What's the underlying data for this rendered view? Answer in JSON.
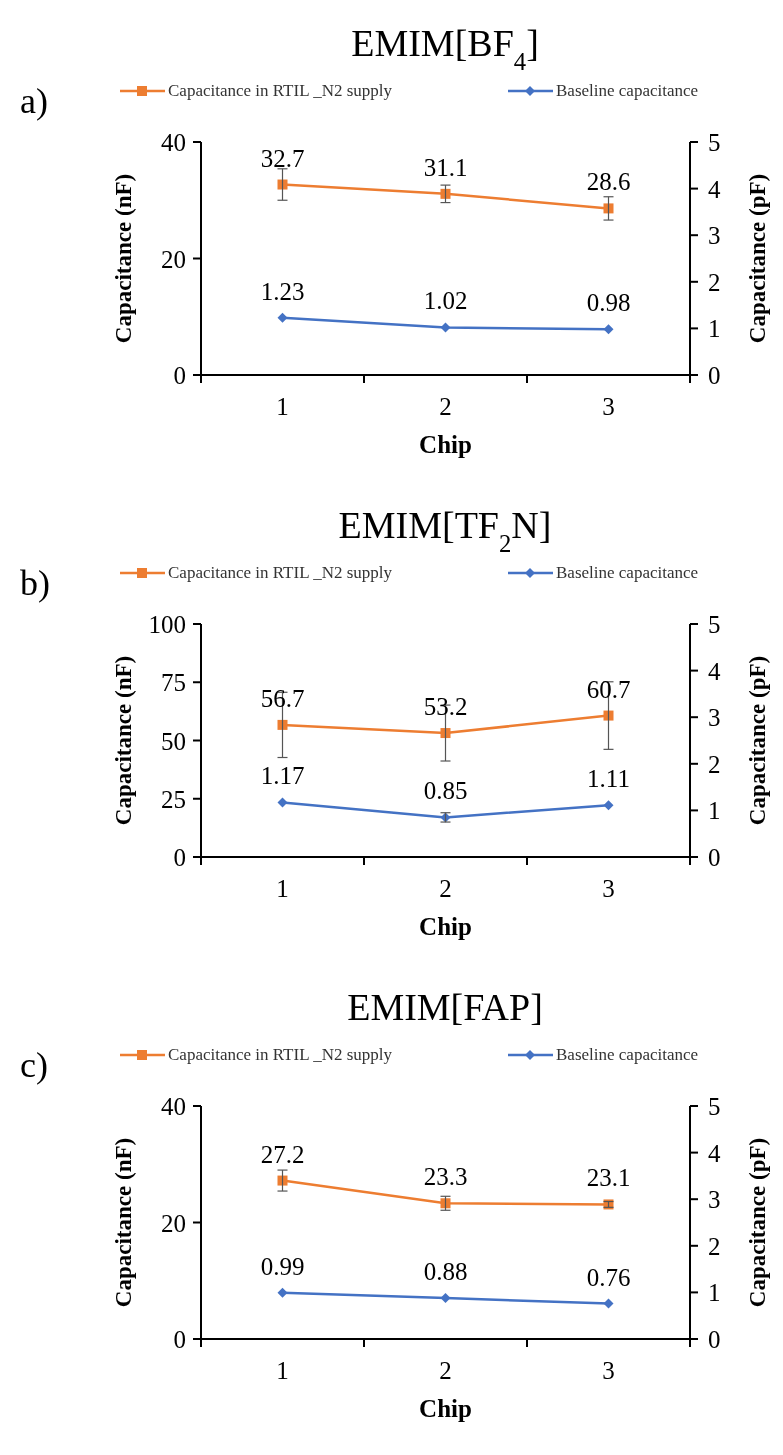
{
  "chart_data": [
    {
      "type": "line",
      "title": "EMIM[BF$_{4}$]",
      "annotations": [
        "a)"
      ],
      "xlabel": "Chip",
      "ylabel": "Capacitance (nF)",
      "y2label": "Capacitance (pF)",
      "categories": [
        "1",
        "2",
        "3"
      ],
      "ylim": [
        0,
        40
      ],
      "yticks": [
        0,
        20,
        40
      ],
      "y2lim": [
        0,
        5
      ],
      "y2ticks": [
        0,
        1,
        2,
        3,
        4,
        5
      ],
      "legend": "top",
      "data_labels": true,
      "grid": false,
      "series": [
        {
          "name": "Capacitance in RTIL _N2 supply",
          "color": "#ed7d31",
          "marker": "square",
          "values": [
            32.7,
            31.1,
            28.6
          ],
          "errors": [
            2.7,
            1.5,
            2
          ]
        },
        {
          "name": "Baseline capacitance",
          "color": "#4472c4",
          "marker": "diamond",
          "axis": "y2",
          "values": [
            1.23,
            1.02,
            0.98
          ]
        }
      ]
    },
    {
      "type": "line",
      "title": "EMIM[TF$_{2}$N]",
      "annotations": [
        "b)"
      ],
      "xlabel": "Chip",
      "ylabel": "Capacitance (nF)",
      "y2label": "Capacitance (pF)",
      "categories": [
        "1",
        "2",
        "3"
      ],
      "ylim": [
        0,
        100
      ],
      "yticks": [
        0,
        25,
        50,
        75,
        100
      ],
      "y2lim": [
        0,
        5
      ],
      "y2ticks": [
        0,
        1,
        2,
        3,
        4,
        5
      ],
      "legend": "top",
      "data_labels": true,
      "grid": false,
      "series": [
        {
          "name": "Capacitance in RTIL _N2 supply",
          "color": "#ed7d31",
          "marker": "square",
          "values": [
            56.7,
            53.2,
            60.7
          ],
          "errors": [
            14,
            12,
            14.5
          ]
        },
        {
          "name": "Baseline capacitance",
          "color": "#4472c4",
          "marker": "diamond",
          "axis": "y2",
          "values": [
            1.17,
            0.85,
            1.11
          ],
          "errors": [
            null,
            0.1,
            null
          ]
        }
      ]
    },
    {
      "type": "line",
      "title": "EMIM[FAP]",
      "annotations": [
        "c)"
      ],
      "xlabel": "Chip",
      "ylabel": "Capacitance (nF)",
      "y2label": "Capacitance (pF)",
      "categories": [
        "1",
        "2",
        "3"
      ],
      "ylim": [
        0,
        40
      ],
      "yticks": [
        0,
        20,
        40
      ],
      "y2lim": [
        0,
        5
      ],
      "y2ticks": [
        0,
        1,
        2,
        3,
        4,
        5
      ],
      "legend": "top",
      "data_labels": true,
      "grid": false,
      "series": [
        {
          "name": "Capacitance in RTIL _N2 supply",
          "color": "#ed7d31",
          "marker": "square",
          "values": [
            27.2,
            23.3,
            23.1
          ],
          "errors": [
            1.8,
            1.2,
            0.5
          ]
        },
        {
          "name": "Baseline capacitance",
          "color": "#4472c4",
          "marker": "diamond",
          "axis": "y2",
          "values": [
            0.99,
            0.88,
            0.76
          ]
        }
      ]
    }
  ]
}
